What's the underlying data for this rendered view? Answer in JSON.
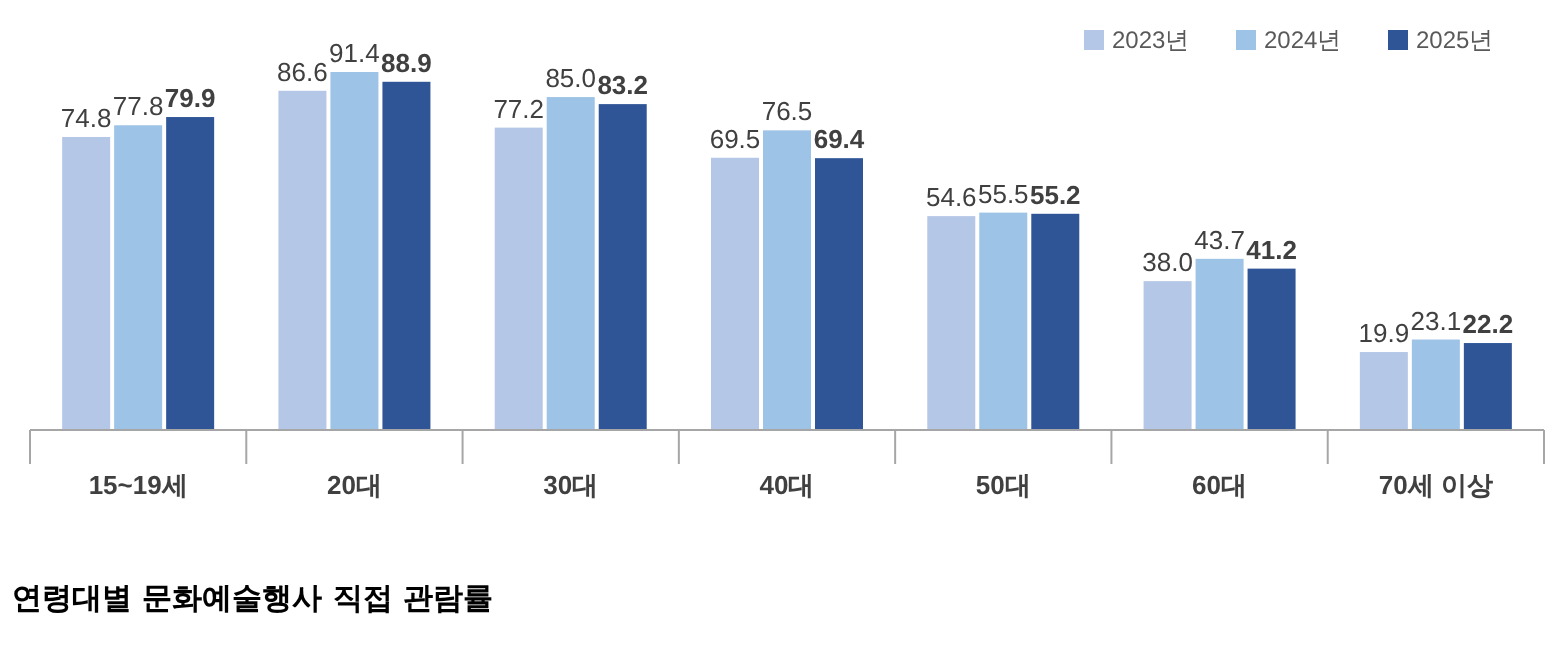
{
  "chart_data": {
    "type": "bar",
    "title": "연령대별 문화예술행사 직접 관람률",
    "categories": [
      "15~19세",
      "20대",
      "30대",
      "40대",
      "50대",
      "60대",
      "70세 이상"
    ],
    "series": [
      {
        "name": "2023년",
        "color": "#b4c7e7",
        "values": [
          74.8,
          86.6,
          77.2,
          69.5,
          54.6,
          38.0,
          19.9
        ],
        "value_labels": [
          "74.8",
          "86.6",
          "77.2",
          "69.5",
          "54.6",
          "38.0",
          "19.9"
        ]
      },
      {
        "name": "2024년",
        "color": "#9dc3e6",
        "values": [
          77.8,
          91.4,
          85.0,
          76.5,
          55.5,
          43.7,
          23.1
        ],
        "value_labels": [
          "77.8",
          "91.4",
          "85.0",
          "76.5",
          "55.5",
          "43.7",
          "23.1"
        ]
      },
      {
        "name": "2025년",
        "color": "#2f5597",
        "values": [
          79.9,
          88.9,
          83.2,
          69.4,
          55.2,
          41.2,
          22.2
        ],
        "value_labels": [
          "79.9",
          "88.9",
          "83.2",
          "69.4",
          "55.2",
          "41.2",
          "22.2"
        ]
      }
    ],
    "legend": "top right"
  }
}
